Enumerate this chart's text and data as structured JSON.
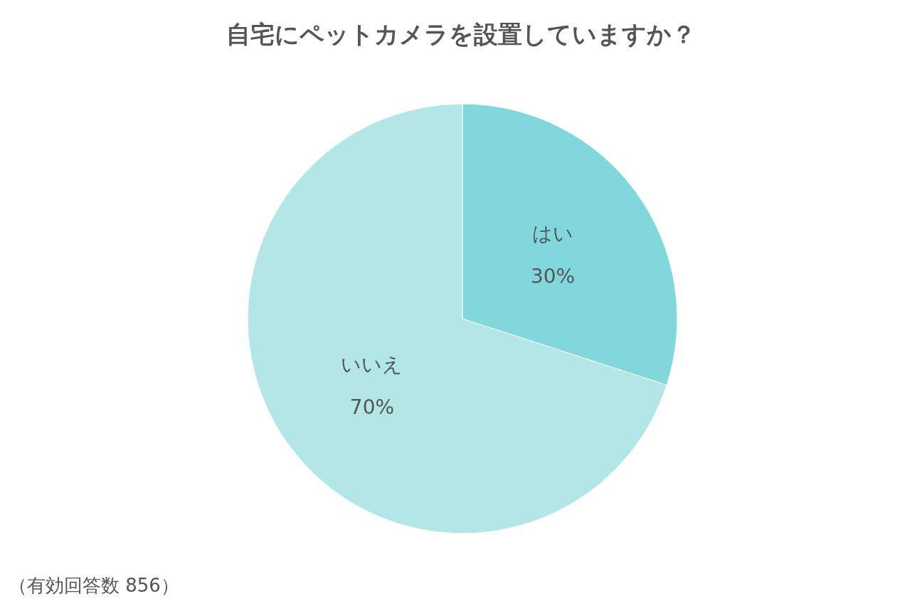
{
  "chart_data": {
    "type": "pie",
    "title": "自宅にペットカメラを設置していますか？",
    "categories": [
      "はい",
      "いいえ"
    ],
    "values": [
      30,
      70
    ],
    "colors": [
      "#80d8dc",
      "#b3e6e6"
    ],
    "value_labels": [
      "30%",
      "70%"
    ],
    "annotations": [
      "（有効回答数 856）"
    ]
  }
}
